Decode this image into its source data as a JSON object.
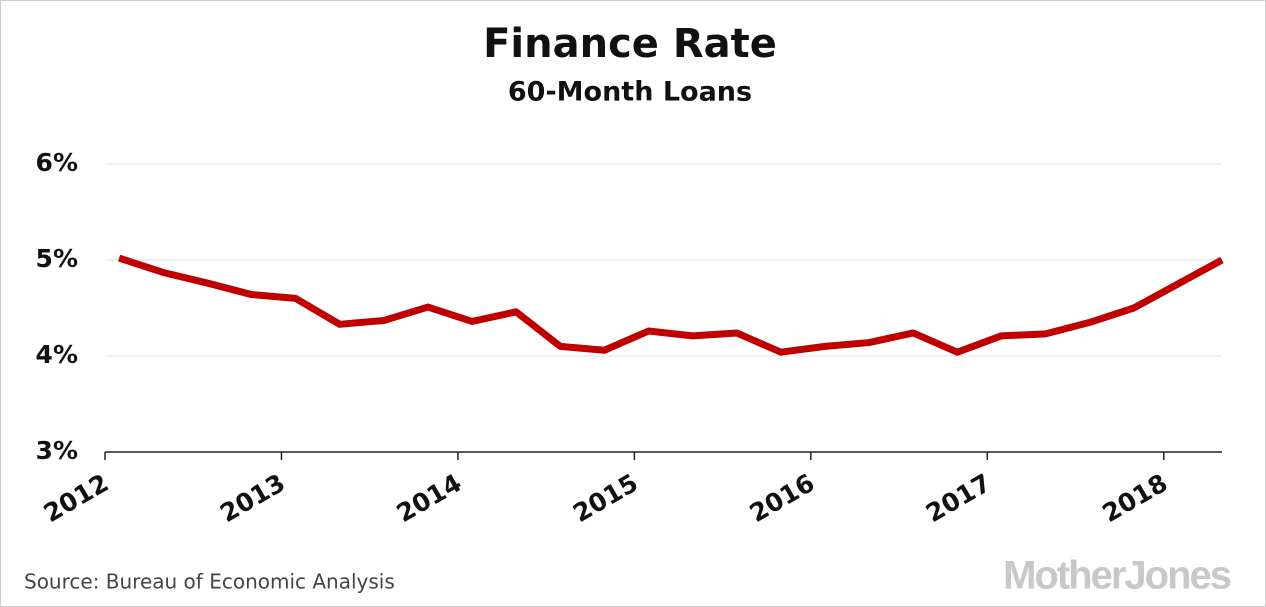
{
  "chart_data": {
    "type": "line",
    "title": "Finance Rate",
    "subtitle": "60-Month Loans",
    "x": [
      2012.08,
      2012.33,
      2012.58,
      2012.83,
      2013.08,
      2013.33,
      2013.58,
      2013.83,
      2014.08,
      2014.33,
      2014.58,
      2014.83,
      2015.08,
      2015.33,
      2015.58,
      2015.83,
      2016.08,
      2016.33,
      2016.58,
      2016.83,
      2017.08,
      2017.33,
      2017.58,
      2017.83,
      2018.08,
      2018.33
    ],
    "series": [
      {
        "color": "#c00000",
        "values": [
          5.02,
          4.87,
          4.76,
          4.64,
          4.6,
          4.33,
          4.37,
          4.51,
          4.36,
          4.46,
          4.1,
          4.06,
          4.26,
          4.21,
          4.24,
          4.04,
          4.1,
          4.14,
          4.24,
          4.04,
          4.21,
          4.23,
          4.35,
          4.5,
          4.75,
          5.0
        ]
      }
    ],
    "xlim": [
      2012,
      2018.33
    ],
    "xticks": [
      2012,
      2013,
      2014,
      2015,
      2016,
      2017,
      2018
    ],
    "ylim": [
      3,
      6
    ],
    "yticks": [
      {
        "value": 3,
        "label": "3%"
      },
      {
        "value": 4,
        "label": "4%"
      },
      {
        "value": 5,
        "label": "5%"
      },
      {
        "value": 6,
        "label": "6%"
      }
    ],
    "grid": true,
    "source": "Source: Bureau of Economic Analysis",
    "logo": "MotherJones"
  }
}
